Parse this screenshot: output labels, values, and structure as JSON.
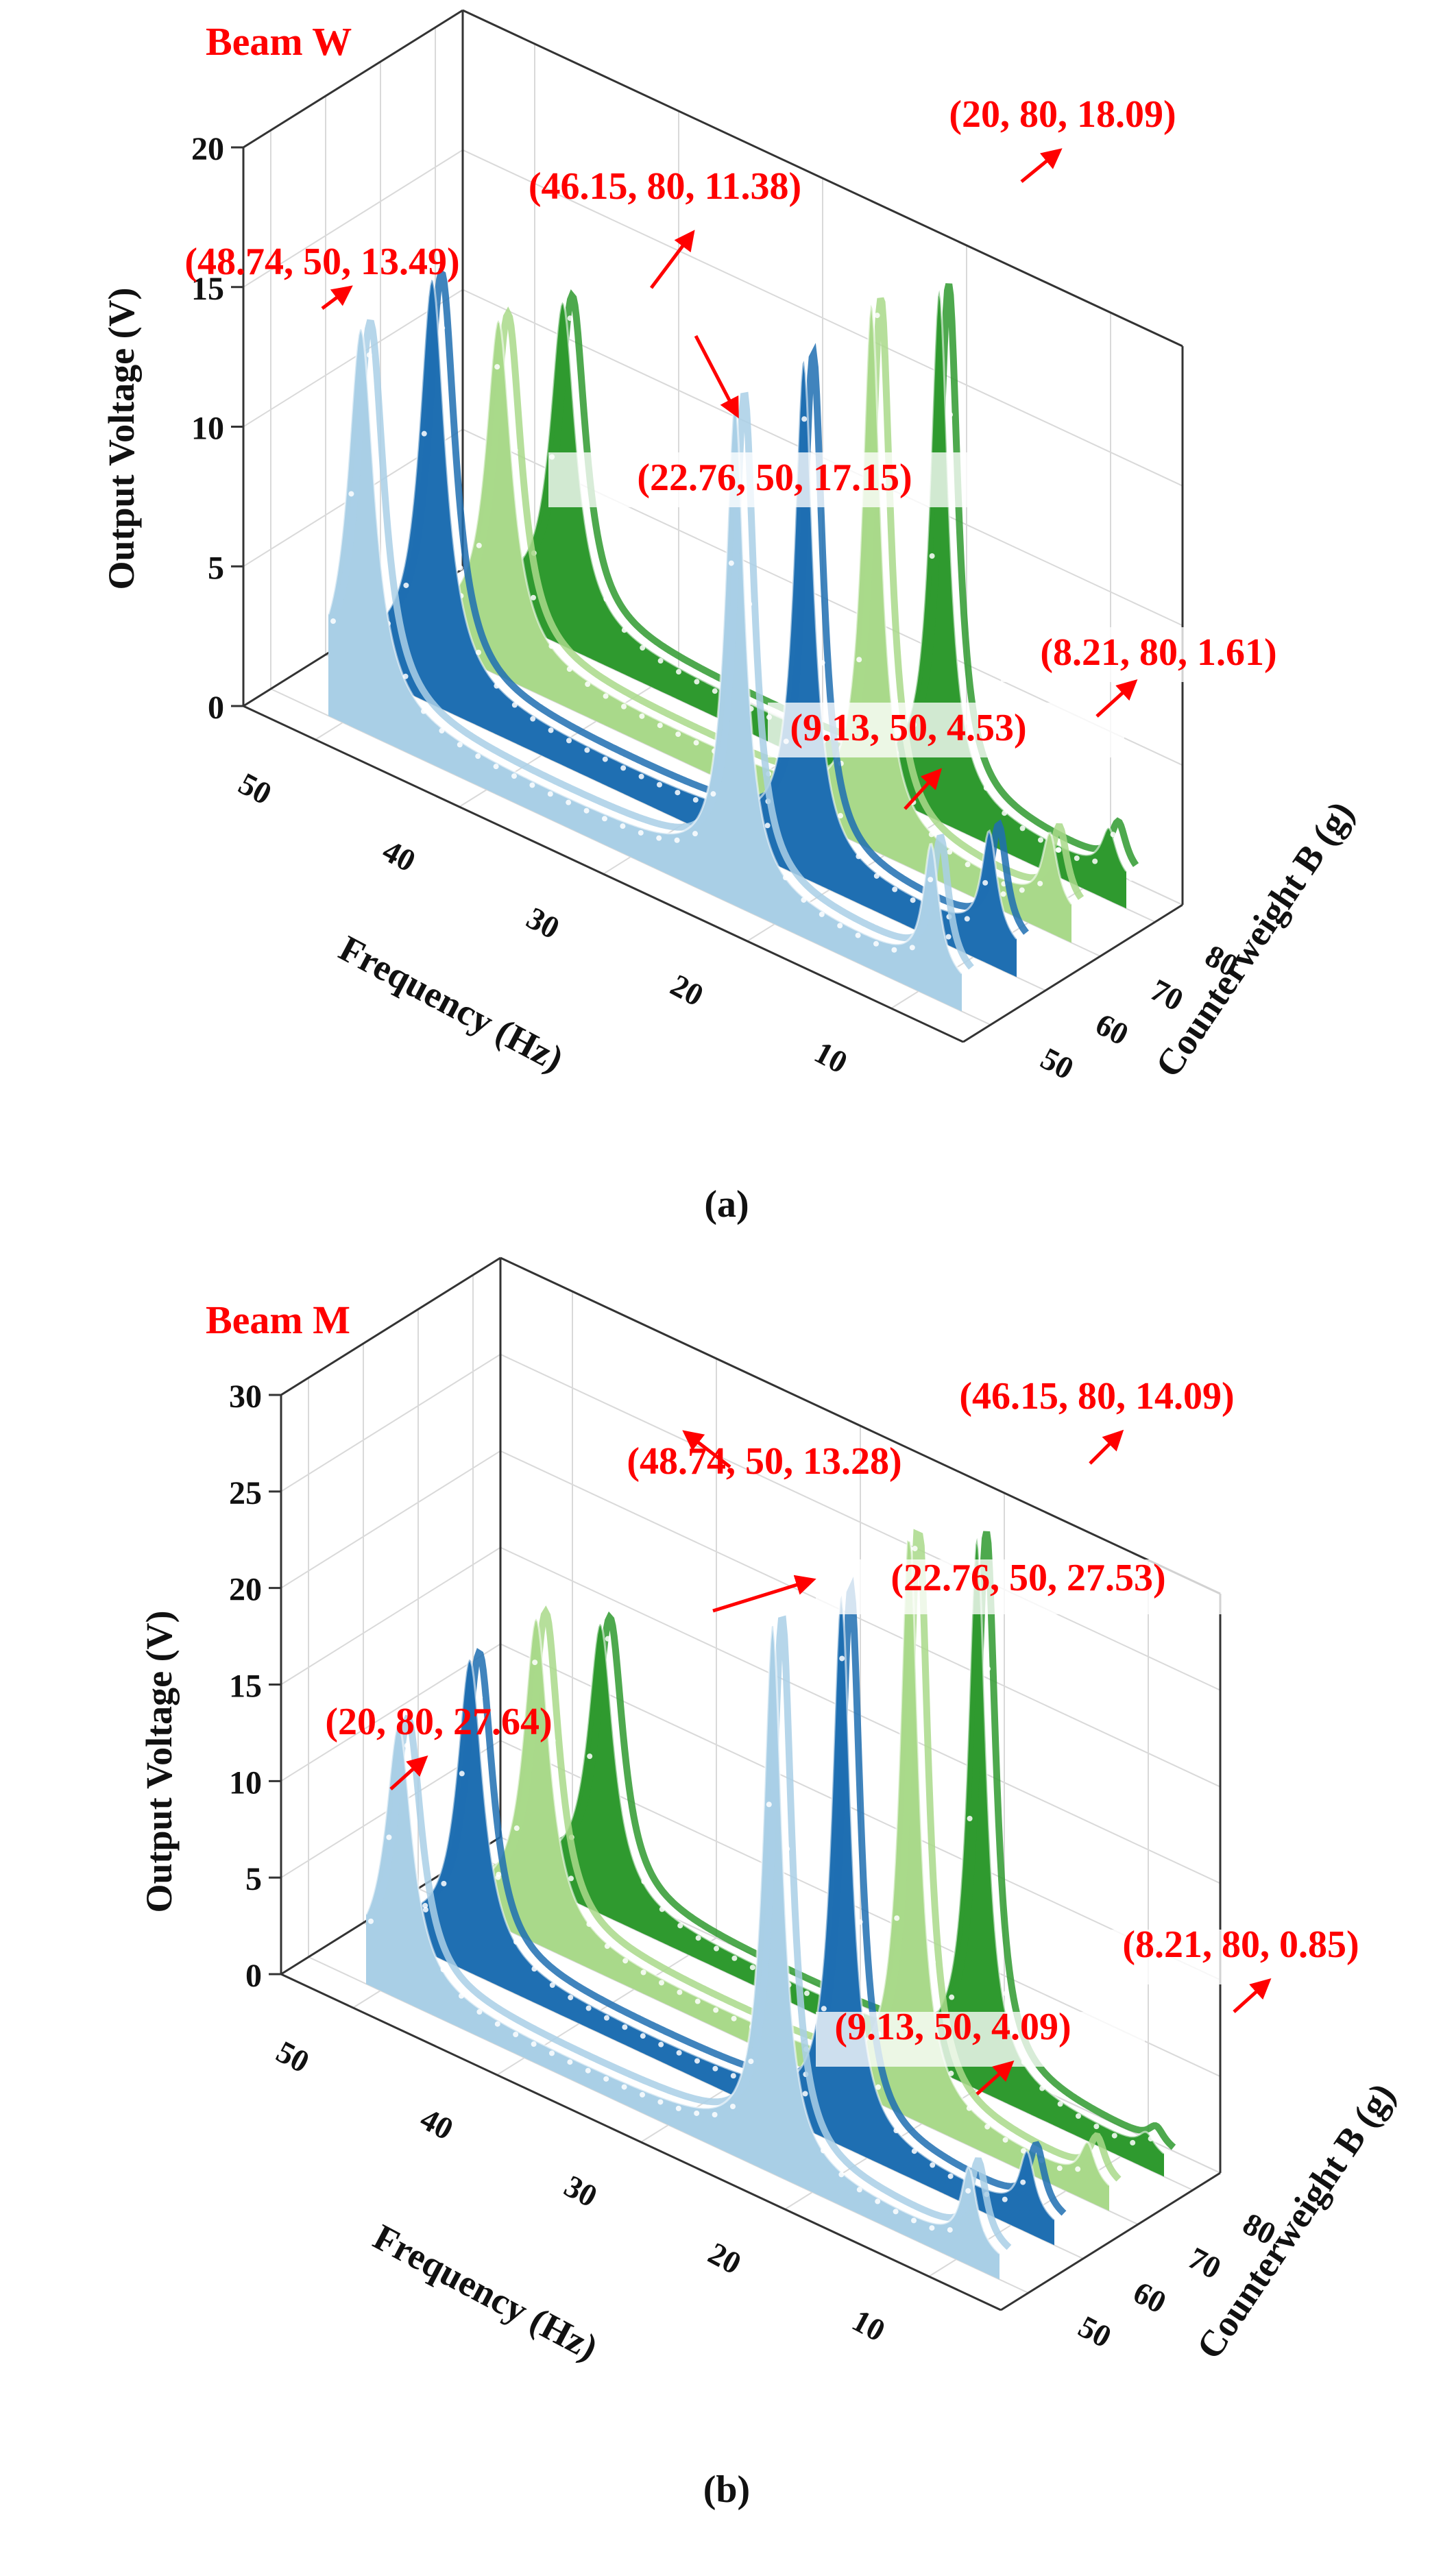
{
  "colors": {
    "series": [
      "#a9cfe6",
      "#1f6fb2",
      "#a9d98a",
      "#2f9a2f"
    ],
    "annotation": "#ff0000"
  },
  "chart_data": [
    {
      "type": "line",
      "title": "Beam W",
      "panel_label": "(a)",
      "xlabel": "Frequency (Hz)",
      "ylabel": "Counterweight B (g)",
      "zlabel": "Output Voltage (V)",
      "xlim": [
        5,
        55
      ],
      "ylim": [
        45,
        85
      ],
      "zlim": [
        0,
        20
      ],
      "x_ticks": [
        "10",
        "20",
        "30",
        "40",
        "50"
      ],
      "y_ticks": [
        "50",
        "60",
        "70",
        "80"
      ],
      "z_ticks": [
        "0",
        "5",
        "10",
        "15",
        "20"
      ],
      "series": [
        {
          "name": "50 g",
          "counterweight": 50,
          "peaks": [
            {
              "f": 48.74,
              "v": 13.49
            },
            {
              "f": 22.76,
              "v": 17.15
            },
            {
              "f": 9.13,
              "v": 4.53
            }
          ]
        },
        {
          "name": "60 g",
          "counterweight": 60,
          "peaks": [
            {
              "f": 47.6,
              "v": 14.3
            },
            {
              "f": 21.8,
              "v": 17.6
            },
            {
              "f": 8.9,
              "v": 3.8
            }
          ]
        },
        {
          "name": "70 g",
          "counterweight": 70,
          "peaks": [
            {
              "f": 46.8,
              "v": 11.8
            },
            {
              "f": 20.9,
              "v": 18.6
            },
            {
              "f": 8.5,
              "v": 2.6
            }
          ]
        },
        {
          "name": "80 g",
          "counterweight": 80,
          "peaks": [
            {
              "f": 46.15,
              "v": 11.38
            },
            {
              "f": 20,
              "v": 18.09
            },
            {
              "f": 8.21,
              "v": 1.61
            }
          ]
        }
      ],
      "annotations": [
        "(48.74, 50, 13.49)",
        "(46.15, 80, 11.38)",
        "(20, 80, 18.09)",
        "(22.76, 50, 17.15)",
        "(8.21, 80, 1.61)",
        "(9.13, 50, 4.53)"
      ]
    },
    {
      "type": "line",
      "title": "Beam M",
      "panel_label": "(b)",
      "xlabel": "Frequency (Hz)",
      "ylabel": "Counterweight B (g)",
      "zlabel": "Output Voltage (V)",
      "xlim": [
        5,
        55
      ],
      "ylim": [
        45,
        85
      ],
      "zlim": [
        0,
        30
      ],
      "x_ticks": [
        "10",
        "20",
        "30",
        "40",
        "50"
      ],
      "y_ticks": [
        "50",
        "60",
        "70",
        "80"
      ],
      "z_ticks": [
        "0",
        "5",
        "10",
        "15",
        "20",
        "25",
        "30"
      ],
      "series": [
        {
          "name": "50 g",
          "counterweight": 50,
          "peaks": [
            {
              "f": 48.74,
              "v": 13.28
            },
            {
              "f": 22.76,
              "v": 27.53
            },
            {
              "f": 9.13,
              "v": 4.09
            }
          ]
        },
        {
          "name": "60 g",
          "counterweight": 60,
          "peaks": [
            {
              "f": 47.6,
              "v": 15.3
            },
            {
              "f": 21.8,
              "v": 27.6
            },
            {
              "f": 8.9,
              "v": 3.2
            }
          ]
        },
        {
          "name": "70 g",
          "counterweight": 70,
          "peaks": [
            {
              "f": 46.8,
              "v": 15.9
            },
            {
              "f": 20.9,
              "v": 29.8
            },
            {
              "f": 8.5,
              "v": 2.0
            }
          ]
        },
        {
          "name": "80 g",
          "counterweight": 80,
          "peaks": [
            {
              "f": 46.15,
              "v": 14.09
            },
            {
              "f": 20,
              "v": 27.64
            },
            {
              "f": 8.21,
              "v": 0.85
            }
          ]
        }
      ],
      "annotations": [
        "(48.74, 50, 13.28)",
        "(22.76, 50, 27.53)",
        "(46.15, 80, 14.09)",
        "(20, 80, 27.64)",
        "(8.21, 80, 0.85)",
        "(9.13, 50, 4.09)"
      ]
    }
  ]
}
